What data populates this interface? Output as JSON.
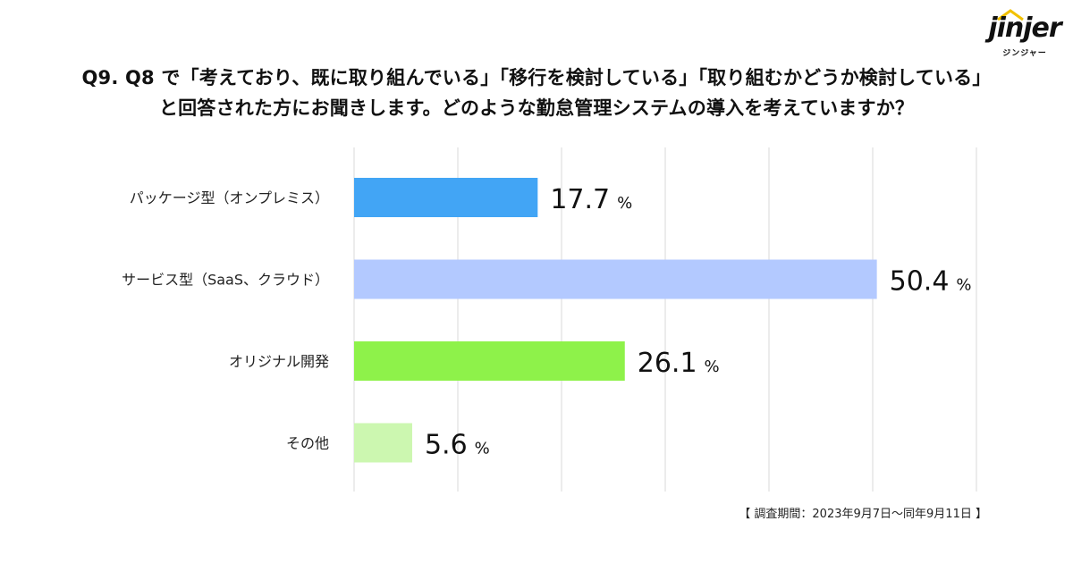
{
  "title": {
    "line1": "Q9. Q8 で「考えており、既に取り組んでいる」「移行を検討している」「取り組むかどうか検討している」",
    "line2": "と回答された方にお聞きします。どのような勤怠管理システムの導入を考えていますか？"
  },
  "logo": {
    "name": "jinjer",
    "sub": "ジンジャー"
  },
  "footnote": "【 調査期間：2023年9月7日〜同年9月11日 】",
  "chart_data": {
    "type": "bar",
    "orientation": "horizontal",
    "categories": [
      "パッケージ型（オンプレミス）",
      "サービス型（SaaS、クラウド）",
      "オリジナル開発",
      "その他"
    ],
    "values": [
      17.7,
      50.4,
      26.1,
      5.6
    ],
    "value_labels": [
      "17.7",
      "50.4",
      "26.1",
      "5.6"
    ],
    "unit": "%",
    "colors": [
      "#42a5f5",
      "#b3c9ff",
      "#8ef24a",
      "#ccf7b0"
    ],
    "xlim": [
      0,
      50
    ],
    "grid": true,
    "gridline_color": "#d9d9d9"
  }
}
